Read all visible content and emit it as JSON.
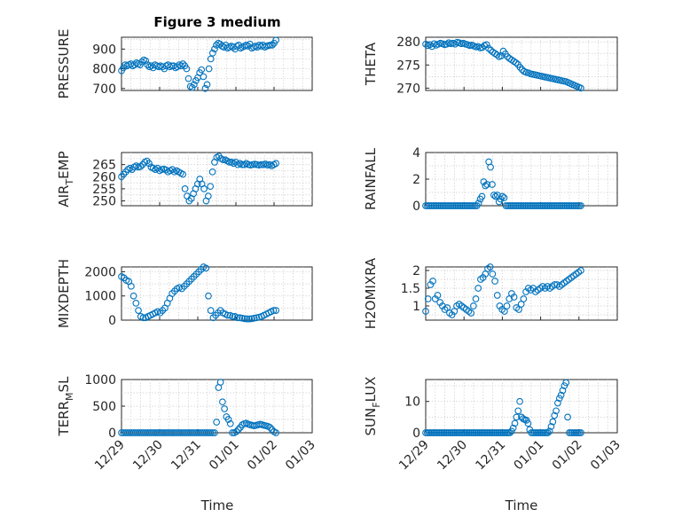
{
  "figure": {
    "title": "Figure 3 medium",
    "marker_color": "#0072bd"
  },
  "chart_data": [
    {
      "type": "scatter",
      "title": "Figure 3 medium",
      "ylabel": "PRESSURE",
      "xlabel": "",
      "xlim": [
        0,
        5
      ],
      "ylim": [
        690,
        960
      ],
      "yticks": [
        700,
        800,
        900
      ],
      "xticks": [],
      "grid": true,
      "y": [
        790,
        805,
        820,
        815,
        820,
        825,
        815,
        820,
        830,
        825,
        820,
        835,
        845,
        840,
        820,
        810,
        815,
        805,
        820,
        815,
        810,
        815,
        810,
        800,
        815,
        820,
        810,
        815,
        815,
        805,
        810,
        820,
        815,
        825,
        815,
        800,
        750,
        710,
        705,
        720,
        740,
        755,
        780,
        795,
        760,
        700,
        720,
        800,
        850,
        880,
        900,
        920,
        930,
        925,
        915,
        910,
        920,
        905,
        910,
        915,
        910,
        900,
        915,
        920,
        905,
        910,
        915,
        920,
        915,
        925,
        905,
        910,
        915,
        910,
        920,
        915,
        920,
        910,
        915,
        918,
        920,
        920,
        930,
        945
      ]
    },
    {
      "type": "scatter",
      "title": "",
      "ylabel": "THETA",
      "xlabel": "",
      "xlim": [
        0,
        5
      ],
      "ylim": [
        269.5,
        281
      ],
      "yticks": [
        270,
        275,
        280
      ],
      "xticks": [],
      "grid": true,
      "y": [
        279.5,
        279.2,
        279.4,
        279,
        279.6,
        279.3,
        279.5,
        279.7,
        279.6,
        279.4,
        279.5,
        279.8,
        279.6,
        279.7,
        279.5,
        279.9,
        279.8,
        279.6,
        279.7,
        279.5,
        279.4,
        279.2,
        279.3,
        279.1,
        278.9,
        279,
        278.7,
        278.8,
        279.2,
        279.4,
        278.6,
        278.2,
        277.8,
        277.5,
        277.2,
        276.8,
        277,
        278,
        277.4,
        276.8,
        276.4,
        276.1,
        275.8,
        275.5,
        275.1,
        274.5,
        274,
        273.6,
        273.4,
        273.3,
        273.1,
        273,
        272.9,
        272.8,
        272.7,
        272.6,
        272.5,
        272.4,
        272.3,
        272.2,
        272.1,
        272,
        271.9,
        271.8,
        271.7,
        271.6,
        271.5,
        271.4,
        271.2,
        271,
        270.8,
        270.6,
        270.4,
        270.2,
        270
      ]
    },
    {
      "type": "scatter",
      "title": "",
      "ylabel": "AIR_TEMP",
      "xlabel": "",
      "xlim": [
        0,
        5
      ],
      "ylim": [
        248,
        270
      ],
      "yticks": [
        250,
        255,
        260,
        265
      ],
      "xticks": [],
      "grid": true,
      "y": [
        260,
        261,
        262,
        263,
        263.5,
        263,
        264,
        264.5,
        264,
        264.2,
        265,
        266,
        266.5,
        265.5,
        264,
        263.5,
        263,
        263.5,
        262.5,
        263,
        263.2,
        262.8,
        262,
        262.5,
        263,
        262,
        262.5,
        262,
        261.5,
        261,
        255,
        252,
        250,
        251,
        253,
        255,
        257,
        259,
        257,
        255,
        250,
        252,
        256,
        262,
        266,
        268,
        268.5,
        267.5,
        267,
        267,
        266.5,
        266,
        266,
        265.5,
        266,
        265,
        265.5,
        265,
        265,
        265.5,
        265,
        264.8,
        265,
        265.2,
        265,
        264.8,
        265,
        265,
        265.3,
        264.8,
        265,
        264.5,
        265,
        265.5
      ]
    },
    {
      "type": "scatter",
      "title": "",
      "ylabel": "RAINFALL",
      "xlabel": "",
      "xlim": [
        0,
        5
      ],
      "ylim": [
        0,
        4
      ],
      "yticks": [
        0,
        2,
        4
      ],
      "xticks": [],
      "grid": true,
      "y": [
        0,
        0,
        0,
        0,
        0,
        0,
        0,
        0,
        0,
        0,
        0,
        0,
        0,
        0,
        0,
        0,
        0,
        0,
        0,
        0,
        0,
        0,
        0,
        0,
        0,
        0,
        0,
        0,
        0,
        0,
        0,
        0.2,
        0.5,
        0.7,
        1.8,
        1.5,
        1.6,
        3.3,
        2.9,
        1.6,
        0.8,
        0.7,
        0.8,
        0.3,
        0.5,
        0.7,
        0.6,
        0,
        0,
        0,
        0,
        0,
        0,
        0,
        0,
        0,
        0,
        0,
        0,
        0,
        0,
        0,
        0,
        0,
        0,
        0,
        0,
        0,
        0,
        0,
        0,
        0,
        0,
        0,
        0,
        0,
        0,
        0,
        0,
        0,
        0,
        0,
        0,
        0,
        0,
        0,
        0,
        0,
        0,
        0,
        0,
        0
      ]
    },
    {
      "type": "scatter",
      "title": "",
      "ylabel": "MIXDEPTH",
      "xlabel": "",
      "xlim": [
        0,
        5
      ],
      "ylim": [
        0,
        2200
      ],
      "yticks": [
        0,
        1000,
        2000
      ],
      "xticks": [],
      "grid": true,
      "y": [
        1800,
        1750,
        1650,
        1600,
        1400,
        1000,
        700,
        400,
        150,
        100,
        100,
        150,
        200,
        250,
        300,
        350,
        300,
        400,
        500,
        700,
        900,
        1100,
        1200,
        1300,
        1350,
        1300,
        1400,
        1500,
        1600,
        1700,
        1800,
        1900,
        2000,
        2100,
        2200,
        2150,
        1000,
        400,
        100,
        200,
        300,
        400,
        300,
        250,
        200,
        200,
        150,
        150,
        100,
        100,
        80,
        60,
        50,
        50,
        60,
        80,
        100,
        120,
        150,
        200,
        250,
        300,
        350,
        400,
        400
      ]
    },
    {
      "type": "scatter",
      "title": "",
      "ylabel": "H2OMIXRA",
      "xlabel": "",
      "xlim": [
        0,
        5
      ],
      "ylim": [
        0.6,
        2.1
      ],
      "yticks": [
        1,
        1.5,
        2
      ],
      "xticks": [],
      "grid": true,
      "y": [
        0.85,
        1.2,
        1.6,
        1.7,
        1.2,
        1.3,
        1.1,
        1.0,
        0.9,
        0.95,
        0.8,
        0.75,
        0.85,
        1.0,
        1.05,
        1.0,
        0.95,
        0.9,
        0.85,
        0.8,
        1.0,
        1.2,
        1.5,
        1.75,
        1.8,
        1.9,
        2.05,
        2.1,
        1.9,
        1.7,
        1.3,
        1.0,
        0.9,
        0.85,
        1.0,
        1.2,
        1.35,
        1.25,
        0.95,
        0.9,
        1.05,
        1.2,
        1.4,
        1.5,
        1.45,
        1.5,
        1.4,
        1.45,
        1.5,
        1.55,
        1.5,
        1.55,
        1.5,
        1.55,
        1.6,
        1.6,
        1.55,
        1.6,
        1.65,
        1.7,
        1.75,
        1.8,
        1.85,
        1.9,
        1.95,
        2.0
      ]
    },
    {
      "type": "scatter",
      "title": "",
      "ylabel": "TERR_MSL",
      "xlabel": "",
      "xlim": [
        0,
        5
      ],
      "ylim": [
        0,
        1000
      ],
      "yticks": [
        0,
        500,
        1000
      ],
      "xticks": [
        "12/29",
        "12/30",
        "12/31",
        "01/01",
        "01/02",
        "01/03"
      ],
      "grid": true,
      "y": [
        0,
        0,
        0,
        0,
        0,
        0,
        0,
        0,
        0,
        0,
        0,
        0,
        0,
        0,
        0,
        0,
        0,
        0,
        0,
        0,
        0,
        0,
        0,
        0,
        0,
        0,
        0,
        0,
        0,
        0,
        0,
        0,
        0,
        0,
        0,
        0,
        0,
        0,
        0,
        0,
        0,
        0,
        0,
        0,
        0,
        0,
        0,
        0,
        200,
        850,
        950,
        580,
        450,
        300,
        250,
        170,
        0,
        0,
        20,
        60,
        100,
        150,
        170,
        180,
        160,
        150,
        140,
        130,
        140,
        150,
        160,
        150,
        140,
        130,
        120,
        100,
        60,
        20,
        0
      ]
    },
    {
      "type": "scatter",
      "title": "",
      "ylabel": "SUN_FLUX",
      "xlabel": "",
      "xlim": [
        0,
        5
      ],
      "ylim": [
        0,
        17
      ],
      "yticks": [
        0,
        10
      ],
      "xticks": [
        "12/29",
        "12/30",
        "12/31",
        "01/01",
        "01/02",
        "01/03"
      ],
      "grid": true,
      "y": [
        0,
        0,
        0,
        0,
        0,
        0,
        0,
        0,
        0,
        0,
        0,
        0,
        0,
        0,
        0,
        0,
        0,
        0,
        0,
        0,
        0,
        0,
        0,
        0,
        0,
        0,
        0,
        0,
        0,
        0,
        0,
        0,
        0,
        0,
        0,
        0,
        0,
        0,
        0,
        0,
        0,
        0,
        0,
        0,
        0,
        0,
        0,
        0,
        0,
        0,
        0,
        0,
        0.5,
        1.5,
        3,
        5,
        7,
        10,
        5,
        4.5,
        4.2,
        4,
        3,
        1,
        0,
        0,
        0,
        0,
        0,
        0,
        0,
        0,
        0,
        0,
        0,
        0.5,
        2,
        3.5,
        5.5,
        7,
        9.5,
        11,
        12,
        13.5,
        15,
        16,
        5,
        0,
        0,
        0,
        0,
        0,
        0,
        0,
        0
      ]
    }
  ],
  "xaxis_label": "Time"
}
